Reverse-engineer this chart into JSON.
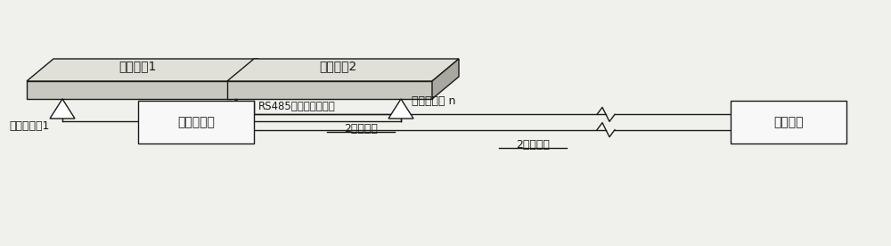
{
  "bg_color": "#f0f0ec",
  "scale_platform1_label": "秤体模块1",
  "scale_platform2_label": "秤体模块2",
  "sensor1_label": "数字传感器1",
  "sensorn_label": "数字传感器 n",
  "junction_box_label": "数字接线盒",
  "rs485_label": "RS485通讯线及电源线",
  "data_wire_label": "2芯数据线",
  "power_wire_label": "2芯电源线",
  "controller_label": "操控仪表",
  "line_color": "#1a1a1a",
  "box_fill": "#f8f8f8",
  "platform_front_fill": "#c8c8c0",
  "platform_top_fill": "#e0e0d8",
  "platform_right_fill": "#a8a8a0",
  "platform_edge": "#1a1a1a",
  "lw": 1.0
}
